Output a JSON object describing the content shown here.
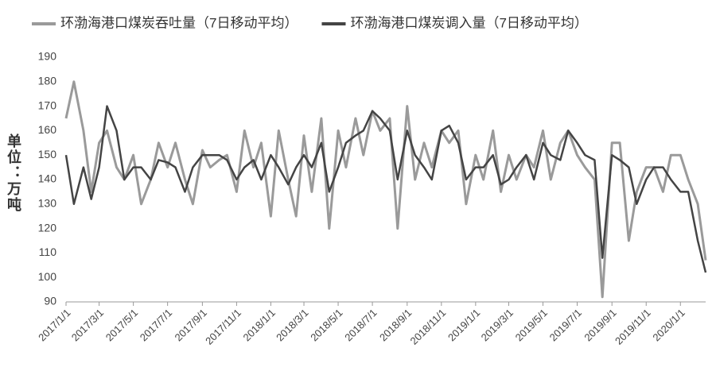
{
  "chart_data": {
    "type": "line",
    "y_label": "单位：万吨",
    "x": [
      "2017/1/1",
      "2017/1/15",
      "2017/2/1",
      "2017/2/15",
      "2017/3/1",
      "2017/3/15",
      "2017/4/1",
      "2017/4/15",
      "2017/5/1",
      "2017/5/15",
      "2017/6/1",
      "2017/6/15",
      "2017/7/1",
      "2017/7/15",
      "2017/8/1",
      "2017/8/15",
      "2017/9/1",
      "2017/9/15",
      "2017/10/1",
      "2017/10/15",
      "2017/11/1",
      "2017/11/15",
      "2017/12/1",
      "2017/12/15",
      "2018/1/1",
      "2018/1/15",
      "2018/2/1",
      "2018/2/15",
      "2018/3/1",
      "2018/3/15",
      "2018/4/1",
      "2018/4/15",
      "2018/5/1",
      "2018/5/15",
      "2018/6/1",
      "2018/6/15",
      "2018/7/1",
      "2018/7/15",
      "2018/8/1",
      "2018/8/15",
      "2018/9/1",
      "2018/9/15",
      "2018/10/1",
      "2018/10/15",
      "2018/11/1",
      "2018/11/15",
      "2018/12/1",
      "2018/12/15",
      "2019/1/1",
      "2019/1/15",
      "2019/2/1",
      "2019/2/15",
      "2019/3/1",
      "2019/3/15",
      "2019/4/1",
      "2019/4/15",
      "2019/5/1",
      "2019/5/15",
      "2019/6/1",
      "2019/6/15",
      "2019/7/1",
      "2019/7/15",
      "2019/8/1",
      "2019/8/15",
      "2019/9/1",
      "2019/9/15",
      "2019/10/1",
      "2019/10/15",
      "2019/11/1",
      "2019/11/15",
      "2019/12/1",
      "2019/12/15",
      "2020/1/1",
      "2020/1/15",
      "2020/2/1",
      "2020/2/15"
    ],
    "series": [
      {
        "name": "环渤海港口煤炭吞吐量（7日移动平均）",
        "color": "#9a9a9a",
        "values": [
          165,
          180,
          160,
          135,
          155,
          160,
          145,
          140,
          150,
          130,
          140,
          155,
          145,
          155,
          140,
          130,
          152,
          145,
          148,
          150,
          135,
          160,
          145,
          155,
          125,
          160,
          140,
          125,
          158,
          135,
          165,
          120,
          160,
          145,
          165,
          150,
          168,
          160,
          165,
          120,
          170,
          140,
          155,
          145,
          160,
          155,
          160,
          130,
          150,
          140,
          160,
          135,
          150,
          140,
          150,
          145,
          160,
          140,
          155,
          160,
          150,
          145,
          140,
          92,
          155,
          155,
          115,
          135,
          145,
          145,
          135,
          150,
          150,
          140,
          130,
          107
        ]
      },
      {
        "name": "环渤海港口煤炭调入量（7日移动平均）",
        "color": "#444444",
        "values": [
          150,
          130,
          145,
          132,
          145,
          170,
          160,
          140,
          145,
          145,
          140,
          148,
          147,
          145,
          135,
          145,
          150,
          150,
          150,
          148,
          140,
          145,
          148,
          140,
          150,
          145,
          138,
          145,
          150,
          145,
          155,
          135,
          145,
          155,
          158,
          160,
          168,
          165,
          160,
          140,
          160,
          150,
          145,
          140,
          160,
          162,
          155,
          140,
          145,
          145,
          150,
          138,
          140,
          145,
          150,
          140,
          155,
          150,
          148,
          160,
          155,
          150,
          148,
          108,
          150,
          148,
          145,
          130,
          140,
          145,
          145,
          140,
          135,
          135,
          115,
          102
        ]
      }
    ],
    "xlim": [
      "2017/1/1",
      "2020/2/15"
    ],
    "xticks": [
      "2017/1/1",
      "2017/3/1",
      "2017/5/1",
      "2017/7/1",
      "2017/9/1",
      "2017/11/1",
      "2018/1/1",
      "2018/3/1",
      "2018/5/1",
      "2018/7/1",
      "2018/9/1",
      "2018/11/1",
      "2019/1/1",
      "2019/3/1",
      "2019/5/1",
      "2019/7/1",
      "2019/9/1",
      "2019/11/1",
      "2020/1/1"
    ],
    "ylim": [
      90,
      190
    ],
    "yticks": [
      90,
      100,
      110,
      120,
      130,
      140,
      150,
      160,
      170,
      180,
      190
    ],
    "grid": false
  }
}
